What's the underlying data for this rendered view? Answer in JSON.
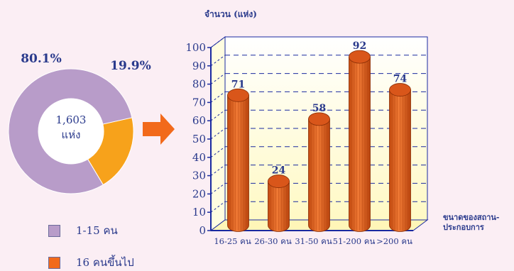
{
  "chart_data": [
    {
      "type": "pie",
      "center_label": [
        "1,603",
        "แห่ง"
      ],
      "slices": [
        {
          "name": "1-15 คน",
          "percent": 80.1,
          "label": "80.1%",
          "color": "#b89cc9"
        },
        {
          "name": "16 คนขึ้นไป",
          "percent": 19.9,
          "label": "19.9%",
          "color": "#f7a21b"
        }
      ],
      "legend": [
        {
          "label": "1-15 คน",
          "color": "#b89cc9"
        },
        {
          "label": "16 คนขึ้นไป",
          "color": "#f26a1b"
        }
      ]
    },
    {
      "type": "bar",
      "ylabel": "จำนวน (แห่ง)",
      "xlabel": "ขนาดของสถาน-ประกอบการ",
      "xlabel_lines": [
        "ขนาดของสถาน-",
        "ประกอบการ"
      ],
      "categories": [
        "16-25 คน",
        "26-30 คน",
        "31-50 คน",
        "51-200 คน",
        ">200 คน"
      ],
      "values": [
        71,
        24,
        58,
        92,
        74
      ],
      "data_labels": [
        "71",
        "24",
        "58",
        "92",
        "74"
      ],
      "yticks": [
        0,
        10,
        20,
        30,
        40,
        50,
        60,
        70,
        80,
        90,
        100
      ],
      "ylim": [
        0,
        100
      ],
      "grid": true,
      "bar_color": "#e25f1e"
    }
  ],
  "colors": {
    "background": "#fbeef4",
    "axis": "#1a2aa0",
    "label_text": "#2a3a8c",
    "arrow": "#f26a1b"
  }
}
